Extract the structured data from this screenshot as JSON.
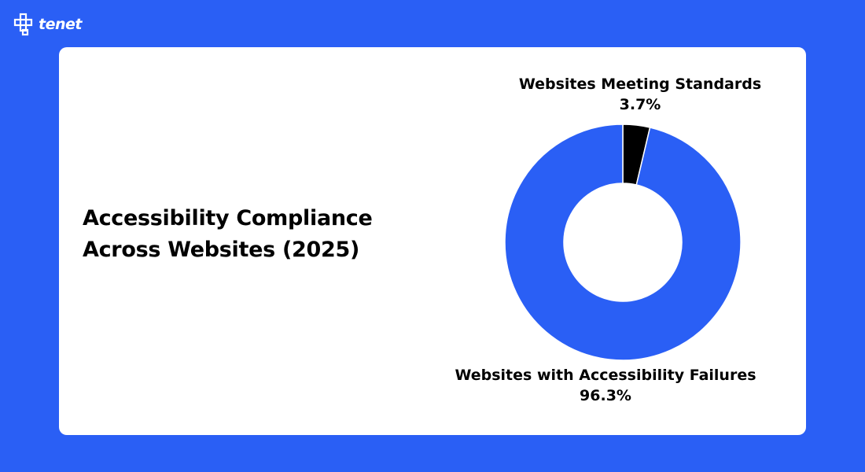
{
  "logo": {
    "text": "tenet"
  },
  "title_lines": [
    "Accessibility Compliance",
    "Across Websites (2025)"
  ],
  "colors": {
    "background": "#2a5ff5",
    "failures": "#2a5ff5",
    "meeting": "#000000",
    "card": "#ffffff"
  },
  "chart_data": {
    "type": "pie",
    "variant": "donut",
    "title": "Accessibility Compliance Across Websites (2025)",
    "categories": [
      "Websites Meeting Standards",
      "Websites with Accessibility Failures"
    ],
    "values": [
      3.7,
      96.3
    ],
    "labels": [
      "3.7%",
      "96.3%"
    ],
    "colors": [
      "#000000",
      "#2a5ff5"
    ]
  }
}
